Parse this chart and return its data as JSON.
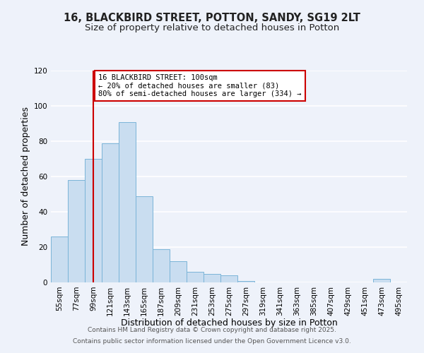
{
  "title": "16, BLACKBIRD STREET, POTTON, SANDY, SG19 2LT",
  "subtitle": "Size of property relative to detached houses in Potton",
  "xlabel": "Distribution of detached houses by size in Potton",
  "ylabel": "Number of detached properties",
  "bin_labels": [
    "55sqm",
    "77sqm",
    "99sqm",
    "121sqm",
    "143sqm",
    "165sqm",
    "187sqm",
    "209sqm",
    "231sqm",
    "253sqm",
    "275sqm",
    "297sqm",
    "319sqm",
    "341sqm",
    "363sqm",
    "385sqm",
    "407sqm",
    "429sqm",
    "451sqm",
    "473sqm",
    "495sqm"
  ],
  "bar_values": [
    26,
    58,
    70,
    79,
    91,
    49,
    19,
    12,
    6,
    5,
    4,
    1,
    0,
    0,
    0,
    0,
    0,
    0,
    0,
    2,
    0
  ],
  "bar_color": "#c9ddf0",
  "bar_edge_color": "#7ab4d8",
  "vline_x": 2,
  "vline_color": "#cc0000",
  "ylim": [
    0,
    120
  ],
  "yticks": [
    0,
    20,
    40,
    60,
    80,
    100,
    120
  ],
  "annotation_text": "16 BLACKBIRD STREET: 100sqm\n← 20% of detached houses are smaller (83)\n80% of semi-detached houses are larger (334) →",
  "annotation_box_color": "#ffffff",
  "annotation_box_edge": "#cc0000",
  "footer1": "Contains HM Land Registry data © Crown copyright and database right 2025.",
  "footer2": "Contains public sector information licensed under the Open Government Licence v3.0.",
  "bg_color": "#eef2fa",
  "grid_color": "#ffffff",
  "title_fontsize": 10.5,
  "subtitle_fontsize": 9.5,
  "xlabel_fontsize": 9,
  "ylabel_fontsize": 9,
  "tick_fontsize": 7.5,
  "annot_fontsize": 7.5,
  "footer_fontsize": 6.5
}
